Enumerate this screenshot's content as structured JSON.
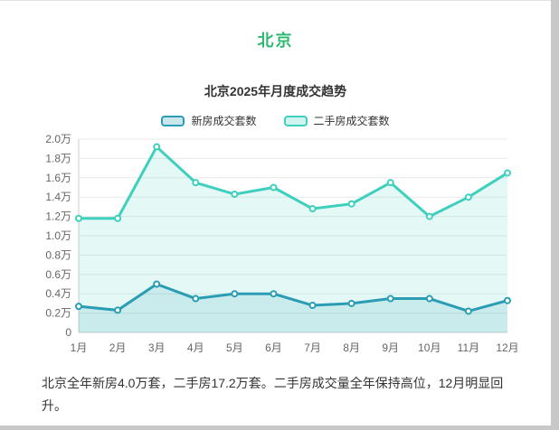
{
  "page": {
    "title": "北京",
    "title_color": "#2eb872"
  },
  "chart_data": {
    "type": "line",
    "title": "北京2025年月度成交趋势",
    "categories": [
      "1月",
      "2月",
      "3月",
      "4月",
      "5月",
      "6月",
      "7月",
      "8月",
      "9月",
      "10月",
      "11月",
      "12月"
    ],
    "series": [
      {
        "name": "新房成交套数",
        "color": "#2a9db4",
        "values": [
          0.27,
          0.23,
          0.5,
          0.35,
          0.4,
          0.4,
          0.28,
          0.3,
          0.35,
          0.35,
          0.22,
          0.33
        ]
      },
      {
        "name": "二手房成交套数",
        "color": "#3ed0bd",
        "values": [
          1.18,
          1.18,
          1.92,
          1.55,
          1.43,
          1.5,
          1.28,
          1.33,
          1.55,
          1.2,
          1.4,
          1.65
        ]
      }
    ],
    "ylim": [
      0,
      2.0
    ],
    "ytick_step": 0.2,
    "ytick_labels": [
      "0",
      "0.2万",
      "0.4万",
      "0.6万",
      "0.8万",
      "1.0万",
      "1.2万",
      "1.4万",
      "1.6万",
      "1.8万",
      "2.0万"
    ],
    "grid": true,
    "legend_position": "top",
    "xlabel": "",
    "ylabel": ""
  },
  "caption": "北京全年新房4.0万套，二手房17.2万套。二手房成交量全年保持高位，12月明显回升。"
}
